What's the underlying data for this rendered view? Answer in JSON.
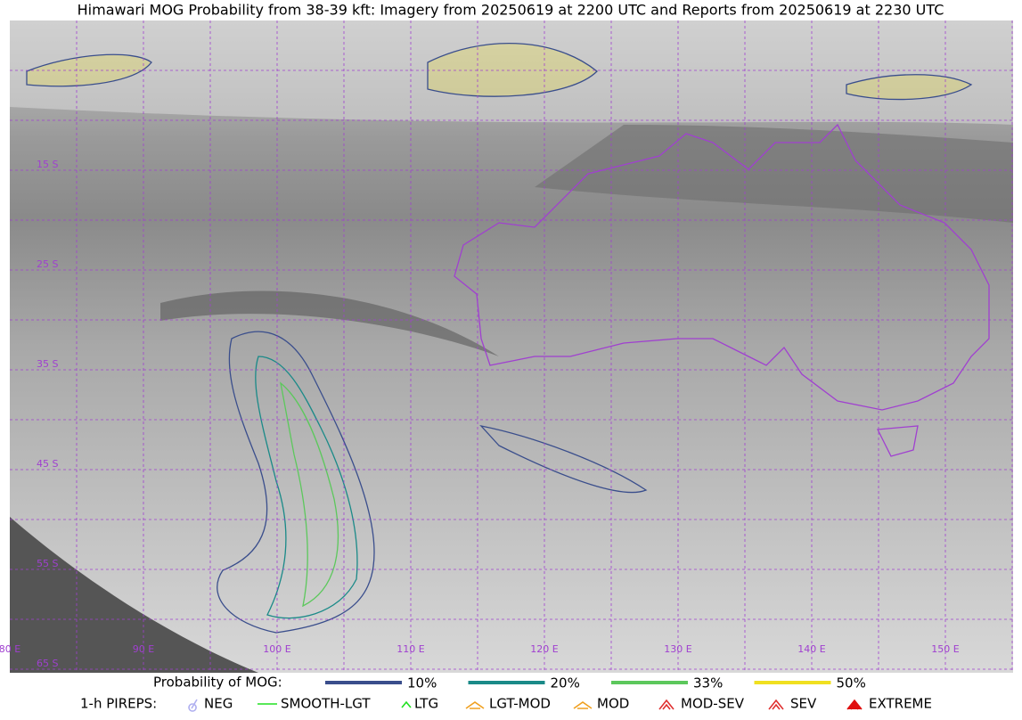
{
  "title": "Himawari MOG Probability from 38-39 kft: Imagery from 20250619 at 2200 UTC and Reports from 20250619 at 2230 UTC",
  "map": {
    "lat_labels": [
      "15 S",
      "25 S",
      "35 S",
      "45 S",
      "55 S",
      "65 S"
    ],
    "lon_labels": [
      "80 E",
      "90 E",
      "100 E",
      "110 E",
      "120 E",
      "130 E",
      "140 E",
      "150 E"
    ]
  },
  "legend": {
    "probability": {
      "label": "Probability of MOG:",
      "items": [
        "10%",
        "20%",
        "33%",
        "50%"
      ]
    },
    "pireps": {
      "label": "1-h PIREPS:",
      "items": [
        "NEG",
        "SMOOTH-LGT",
        "LTG",
        "LGT-MOD",
        "MOD",
        "MOD-SEV",
        "SEV",
        "EXTREME"
      ]
    }
  }
}
